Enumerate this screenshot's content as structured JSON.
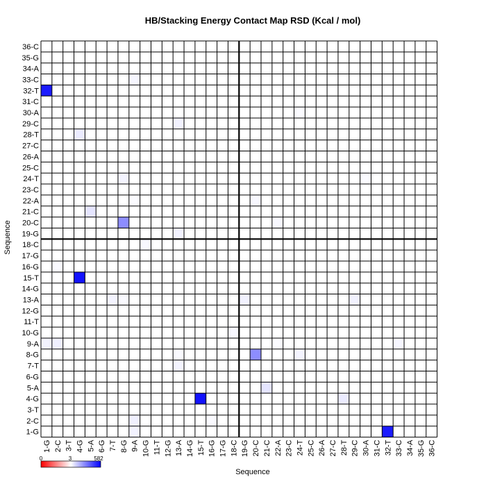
{
  "chart_data": {
    "type": "heatmap",
    "title": "HB/Stacking Energy Contact Map RSD (Kcal / mol)",
    "xlabel": "Sequence",
    "ylabel": "Sequence",
    "labels": [
      "1-G",
      "2-C",
      "3-T",
      "4-G",
      "5-A",
      "6-G",
      "7-T",
      "8-G",
      "9-A",
      "10-G",
      "11-T",
      "12-G",
      "13-A",
      "14-G",
      "15-T",
      "16-G",
      "17-G",
      "18-C",
      "19-G",
      "20-C",
      "21-C",
      "22-A",
      "23-C",
      "24-T",
      "25-C",
      "26-A",
      "27-C",
      "28-T",
      "29-C",
      "30-A",
      "31-C",
      "32-T",
      "33-C",
      "34-A",
      "35-G",
      "36-C"
    ],
    "separator_after_index": 18,
    "colorbar": {
      "min": 0,
      "max": 582,
      "min_label": "0",
      "mid_label": "3",
      "max_label": "582",
      "low_color": "#ff0000",
      "mid_color": "#ffffff",
      "high_color": "#0000ff"
    },
    "grid": true,
    "cells": [
      {
        "x": "1-G",
        "y": "32-T",
        "value": 520
      },
      {
        "x": "32-T",
        "y": "1-G",
        "value": 520
      },
      {
        "x": "4-G",
        "y": "15-T",
        "value": 540
      },
      {
        "x": "15-T",
        "y": "4-G",
        "value": 540
      },
      {
        "x": "8-G",
        "y": "20-C",
        "value": 260
      },
      {
        "x": "20-C",
        "y": "8-G",
        "value": 260
      },
      {
        "x": "5-A",
        "y": "21-C",
        "value": 60
      },
      {
        "x": "21-C",
        "y": "5-A",
        "value": 60
      },
      {
        "x": "4-G",
        "y": "28-T",
        "value": 45
      },
      {
        "x": "28-T",
        "y": "4-G",
        "value": 45
      },
      {
        "x": "1-G",
        "y": "9-A",
        "value": 30
      },
      {
        "x": "2-C",
        "y": "9-A",
        "value": 35
      },
      {
        "x": "9-A",
        "y": "2-C",
        "value": 35
      },
      {
        "x": "9-A",
        "y": "1-G",
        "value": 30
      },
      {
        "x": "13-A",
        "y": "29-C",
        "value": 30
      },
      {
        "x": "29-C",
        "y": "13-A",
        "value": 30
      },
      {
        "x": "13-A",
        "y": "19-G",
        "value": 30
      },
      {
        "x": "19-G",
        "y": "13-A",
        "value": 30
      },
      {
        "x": "13-A",
        "y": "7-T",
        "value": 25
      },
      {
        "x": "7-T",
        "y": "13-A",
        "value": 25
      },
      {
        "x": "24-T",
        "y": "8-G",
        "value": 25
      },
      {
        "x": "8-G",
        "y": "24-T",
        "value": 25
      },
      {
        "x": "19-G",
        "y": "13-A",
        "value": 30
      },
      {
        "x": "29-C",
        "y": "13-A",
        "value": 30
      },
      {
        "x": "33-C",
        "y": "9-A",
        "value": 20
      },
      {
        "x": "9-A",
        "y": "33-C",
        "value": 20
      },
      {
        "x": "22-A",
        "y": "20-C",
        "value": 15
      },
      {
        "x": "20-C",
        "y": "22-A",
        "value": 15
      },
      {
        "x": "10-G",
        "y": "18-C",
        "value": 15
      },
      {
        "x": "18-C",
        "y": "10-G",
        "value": 15
      },
      {
        "x": "16-G",
        "y": "2-C",
        "value": 12
      },
      {
        "x": "2-C",
        "y": "16-G",
        "value": 12
      },
      {
        "x": "8-G",
        "y": "13-A",
        "value": 12
      },
      {
        "x": "13-A",
        "y": "8-G",
        "value": 12
      },
      {
        "x": "24-T",
        "y": "30-A",
        "value": 10
      },
      {
        "x": "30-A",
        "y": "24-T",
        "value": 10
      },
      {
        "x": "9-A",
        "y": "22-A",
        "value": 8
      },
      {
        "x": "22-A",
        "y": "9-A",
        "value": 8
      }
    ]
  }
}
